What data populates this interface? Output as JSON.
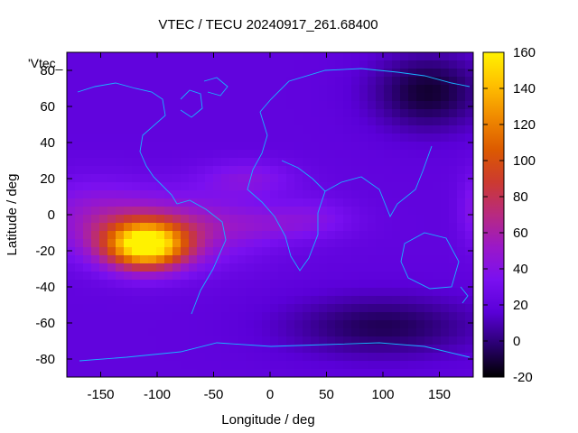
{
  "chart_data": {
    "type": "heatmap",
    "title": "VTEC / TECU 20240917_261.68400",
    "xlabel": "Longitude / deg",
    "ylabel": "Latitude / deg",
    "series_label": "'Vtec_",
    "xlim": [
      -180,
      180
    ],
    "ylim": [
      -90,
      90
    ],
    "xticks": [
      -150,
      -100,
      -50,
      0,
      50,
      100,
      150
    ],
    "yticks": [
      -80,
      -60,
      -40,
      -20,
      0,
      20,
      40,
      60,
      80
    ],
    "colorbar": {
      "range": [
        -20,
        160
      ],
      "ticks": [
        -20,
        0,
        20,
        40,
        60,
        80,
        100,
        120,
        140,
        160
      ],
      "colors": [
        "#000000",
        "#2a0070",
        "#5a00d8",
        "#7a10f0",
        "#9a18c8",
        "#b82a80",
        "#cc3a30",
        "#dc5a00",
        "#f08a00",
        "#ffc000",
        "#fff200"
      ]
    },
    "background_value": 20,
    "features": [
      {
        "name": "equatorial-anomaly-peak",
        "lon": -110,
        "lat": -17,
        "value": 155,
        "sigma_lon": 25,
        "sigma_lat": 9
      },
      {
        "name": "south-america-crest",
        "lon": -90,
        "lat": -8,
        "value": 55,
        "sigma_lon": 55,
        "sigma_lat": 14
      },
      {
        "name": "pacific-tail",
        "lon": -160,
        "lat": 0,
        "value": 40,
        "sigma_lon": 35,
        "sigma_lat": 14
      },
      {
        "name": "atlantic-north-crest",
        "lon": -20,
        "lat": 20,
        "value": 40,
        "sigma_lon": 30,
        "sigma_lat": 7
      },
      {
        "name": "atlantic-south-crest",
        "lon": 0,
        "lat": -5,
        "value": 35,
        "sigma_lon": 45,
        "sigma_lat": 7
      },
      {
        "name": "africa-crest",
        "lon": 40,
        "lat": 0,
        "value": 30,
        "sigma_lon": 25,
        "sigma_lat": 8
      },
      {
        "name": "dateline-east-edge",
        "lon": 182,
        "lat": 3,
        "value": 40,
        "sigma_lon": 10,
        "sigma_lat": 14
      },
      {
        "name": "north-polar-low",
        "lon": 140,
        "lat": 68,
        "value": -12,
        "sigma_lon": 35,
        "sigma_lat": 15
      },
      {
        "name": "south-high-lat-low",
        "lon": 100,
        "lat": -62,
        "value": -6,
        "sigma_lon": 60,
        "sigma_lat": 12
      }
    ]
  }
}
